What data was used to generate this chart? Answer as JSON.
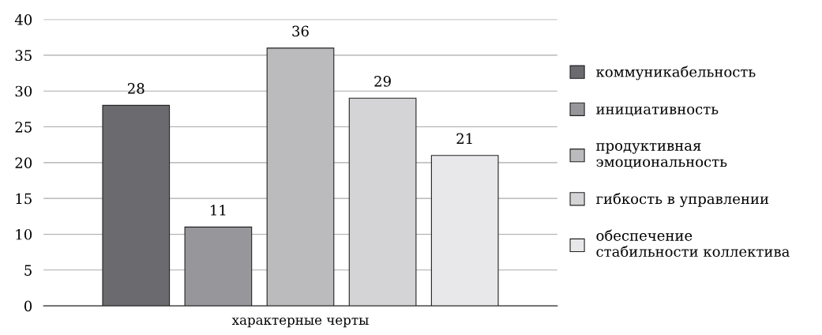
{
  "chart_data": {
    "type": "bar",
    "categories": [
      "характерные черты"
    ],
    "series": [
      {
        "name": "коммуникабельность",
        "color": "#6b6b6f",
        "values": [
          28
        ]
      },
      {
        "name": "инициативность",
        "color": "#97979b",
        "values": [
          11
        ]
      },
      {
        "name": "продуктивная\nэмоциональность",
        "color": "#bbbbbe",
        "values": [
          36
        ]
      },
      {
        "name": "гибкость в управлении",
        "color": "#d4d4d6",
        "values": [
          29
        ]
      },
      {
        "name": "обеспечение\nстабильности коллектива",
        "color": "#e8e8ea",
        "values": [
          21
        ]
      }
    ],
    "ylim": [
      0,
      40
    ],
    "yticks": [
      0,
      5,
      10,
      15,
      20,
      25,
      30,
      35,
      40
    ],
    "grid": "y",
    "legend": "right",
    "data_labels": true
  }
}
